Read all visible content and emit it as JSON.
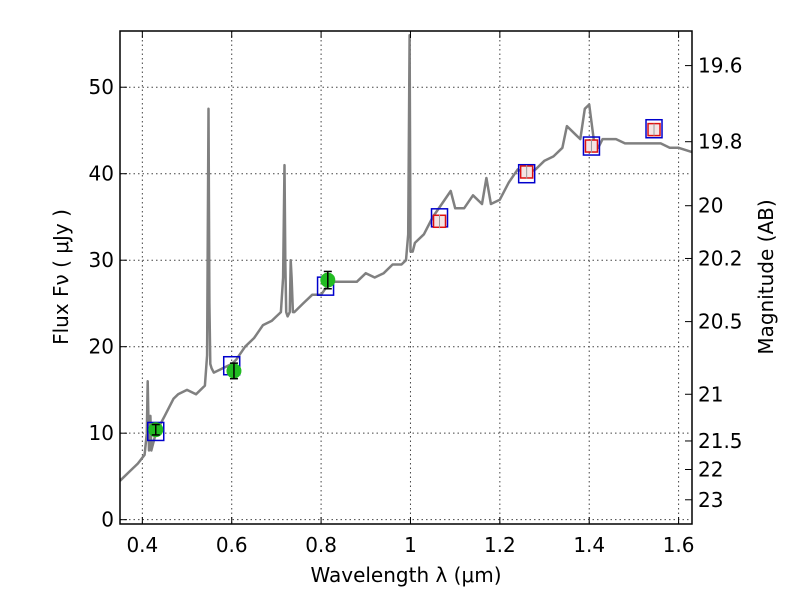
{
  "chart_data": {
    "type": "line",
    "title": "",
    "xlabel": "Wavelength  λ (μm)",
    "ylabel": "Flux  Fν  ( μJy )",
    "y2label": "Magnitude (AB)",
    "xlim": [
      0.35,
      1.63
    ],
    "ylim": [
      -0.5,
      56.5
    ],
    "grid": true,
    "x_ticks": [
      {
        "value": 0.4,
        "label": "0.4"
      },
      {
        "value": 0.6,
        "label": "0.6"
      },
      {
        "value": 0.8,
        "label": "0.8"
      },
      {
        "value": 1.0,
        "label": "1"
      },
      {
        "value": 1.2,
        "label": "1.2"
      },
      {
        "value": 1.4,
        "label": "1.4"
      },
      {
        "value": 1.6,
        "label": "1.6"
      }
    ],
    "y_ticks": [
      {
        "value": 0,
        "label": "0"
      },
      {
        "value": 10,
        "label": "10"
      },
      {
        "value": 20,
        "label": "20"
      },
      {
        "value": 30,
        "label": "30"
      },
      {
        "value": 40,
        "label": "40"
      },
      {
        "value": 50,
        "label": "50"
      }
    ],
    "y2_ticks": [
      {
        "flux": 52.5,
        "label": "19.6"
      },
      {
        "flux": 43.7,
        "label": "19.8"
      },
      {
        "flux": 36.3,
        "label": "20"
      },
      {
        "flux": 30.2,
        "label": "20.2"
      },
      {
        "flux": 22.9,
        "label": "20.5"
      },
      {
        "flux": 14.5,
        "label": "21"
      },
      {
        "flux": 9.1,
        "label": "21.5"
      },
      {
        "flux": 5.8,
        "label": "22"
      },
      {
        "flux": 2.3,
        "label": "23"
      }
    ],
    "colors": {
      "spectrum": "#808080",
      "model": "#0000cc",
      "nir": "#dd1111",
      "optical": "#22bb22"
    },
    "series": [
      {
        "kind": "spectrum",
        "x": [
          0.35,
          0.37,
          0.39,
          0.405,
          0.41,
          0.412,
          0.415,
          0.418,
          0.42,
          0.43,
          0.44,
          0.45,
          0.47,
          0.48,
          0.5,
          0.52,
          0.54,
          0.545,
          0.548,
          0.55,
          0.552,
          0.555,
          0.56,
          0.58,
          0.6,
          0.61,
          0.63,
          0.65,
          0.67,
          0.69,
          0.7,
          0.71,
          0.715,
          0.718,
          0.72,
          0.722,
          0.725,
          0.73,
          0.732,
          0.734,
          0.737,
          0.74,
          0.76,
          0.78,
          0.8,
          0.82,
          0.84,
          0.86,
          0.88,
          0.9,
          0.92,
          0.94,
          0.96,
          0.98,
          0.99,
          0.995,
          0.998,
          1.0,
          1.002,
          1.005,
          1.01,
          1.03,
          1.05,
          1.07,
          1.09,
          1.1,
          1.12,
          1.14,
          1.16,
          1.17,
          1.18,
          1.2,
          1.22,
          1.24,
          1.26,
          1.28,
          1.3,
          1.32,
          1.34,
          1.35,
          1.37,
          1.38,
          1.39,
          1.4,
          1.41,
          1.42,
          1.43,
          1.44,
          1.46,
          1.48,
          1.5,
          1.52,
          1.54,
          1.56,
          1.58,
          1.6,
          1.63
        ],
        "y": [
          4.5,
          5.5,
          6.5,
          7.5,
          10,
          16,
          8,
          12,
          8,
          10,
          11,
          12,
          14,
          14.5,
          15,
          14.5,
          15.5,
          19,
          47.5,
          25,
          18,
          17.5,
          17,
          17.5,
          18,
          18.5,
          20,
          21,
          22.5,
          23,
          23.5,
          24,
          28,
          41,
          30,
          24,
          23.5,
          24,
          30,
          28,
          24,
          24,
          25,
          26,
          26,
          27.5,
          27.5,
          27.5,
          27.5,
          28.5,
          28,
          28.5,
          29.5,
          29.5,
          30,
          33,
          56,
          31,
          31,
          31,
          32,
          33,
          35,
          36.5,
          38,
          36,
          36,
          37.5,
          36.5,
          39.5,
          36.5,
          37,
          39,
          40.5,
          40,
          40.5,
          41.5,
          42,
          43,
          45.5,
          44.5,
          44,
          47.5,
          48,
          44,
          43,
          44,
          44,
          44,
          43.5,
          43.5,
          43.5,
          43.5,
          43.5,
          43,
          43,
          42.5
        ]
      },
      {
        "kind": "model-squares",
        "x": [
          0.43,
          0.6,
          0.81,
          1.065,
          1.26,
          1.405,
          1.545
        ],
        "y": [
          10.2,
          17.8,
          27,
          34.9,
          40,
          43.2,
          45.2
        ]
      },
      {
        "kind": "nir-squares",
        "x": [
          1.065,
          1.26,
          1.405,
          1.545
        ],
        "y": [
          34.5,
          40.2,
          43.2,
          45.1
        ],
        "err": [
          0.8,
          0.8,
          0.8,
          0.7
        ]
      },
      {
        "kind": "optical-points",
        "x": [
          0.43,
          0.605,
          0.815
        ],
        "y": [
          10.4,
          17.2,
          27.7
        ],
        "err": [
          0.6,
          0.9,
          1.0
        ]
      }
    ]
  }
}
